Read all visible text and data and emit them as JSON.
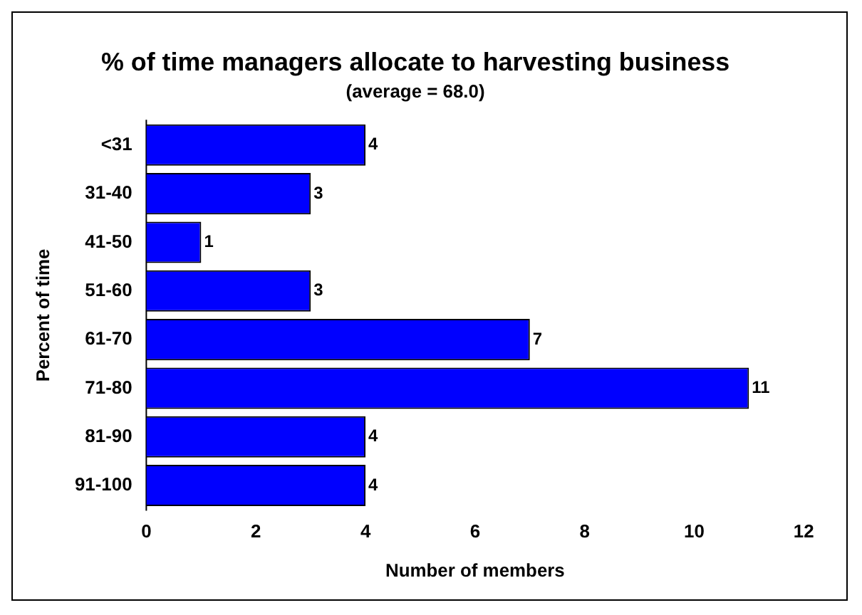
{
  "chart_data": {
    "type": "bar",
    "orientation": "horizontal",
    "title": "% of time managers allocate to harvesting business",
    "subtitle": "(average = 68.0)",
    "xlabel": "Number of members",
    "ylabel": "Percent of time",
    "categories": [
      "<31",
      "31-40",
      "41-50",
      "51-60",
      "61-70",
      "71-80",
      "81-90",
      "91-100"
    ],
    "values": [
      4,
      3,
      1,
      3,
      7,
      11,
      4,
      4
    ],
    "color": "#0000ff",
    "xlim": [
      0,
      12
    ],
    "xticks": [
      0,
      2,
      4,
      6,
      8,
      10,
      12
    ],
    "grid": false,
    "legend": false,
    "data_labels": true
  }
}
